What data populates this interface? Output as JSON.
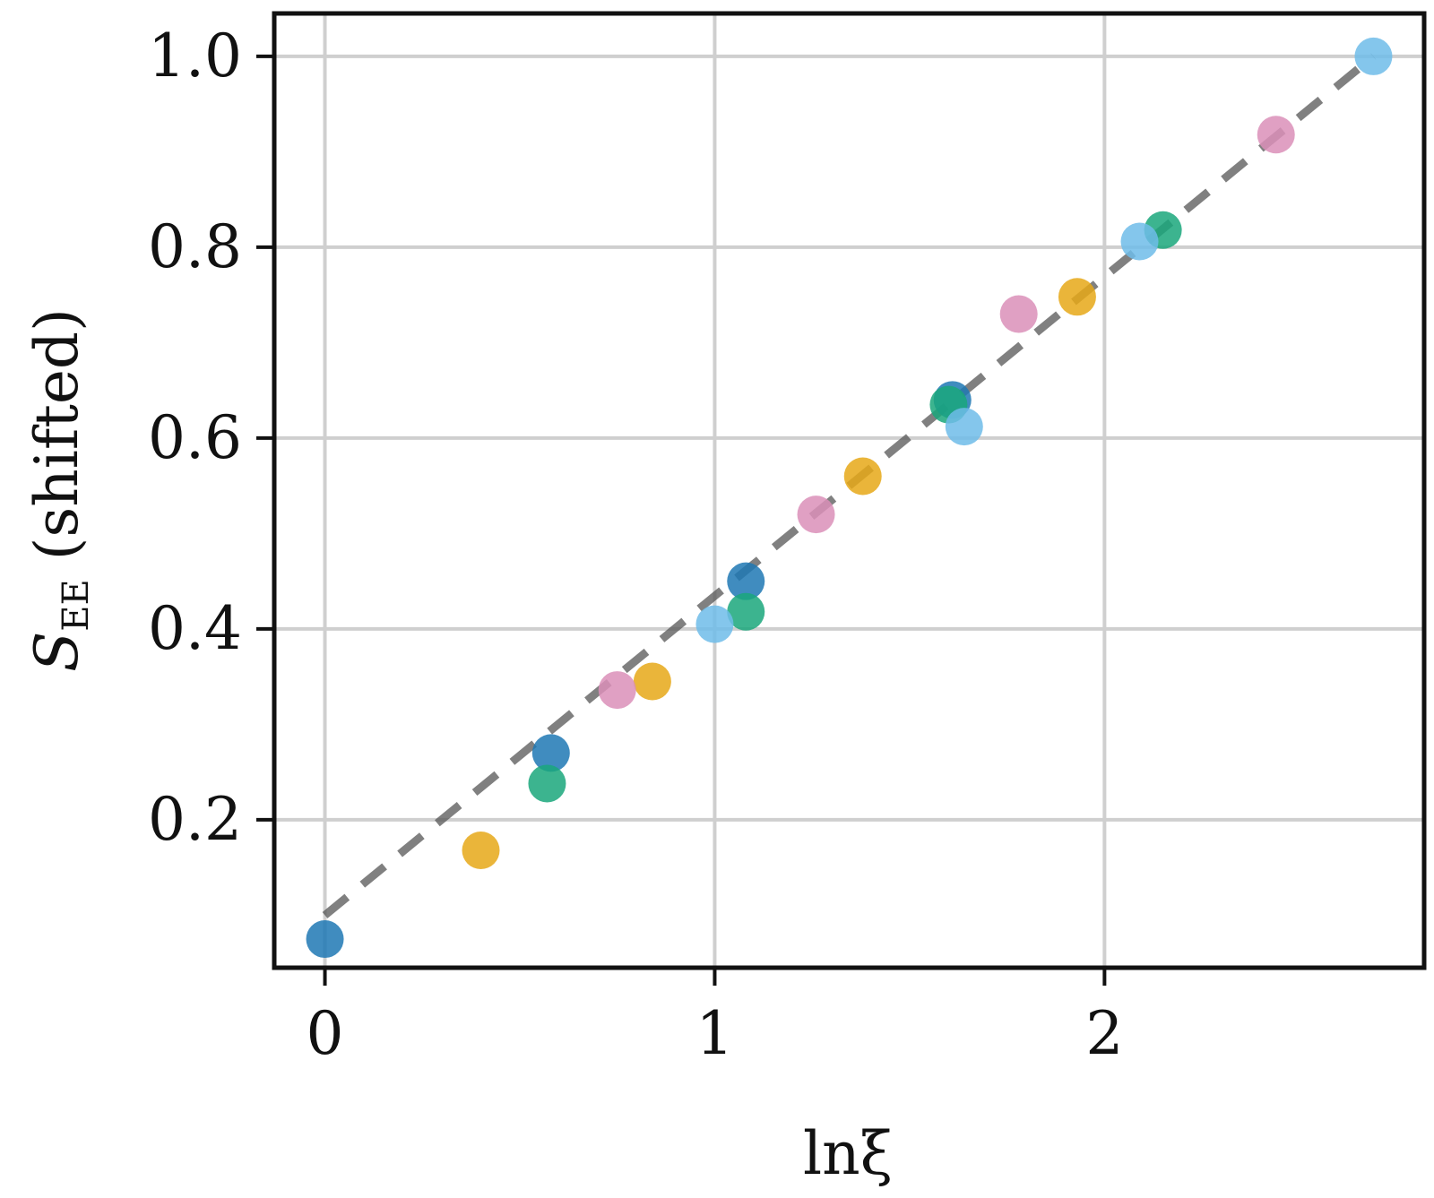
{
  "chart_data": {
    "type": "scatter",
    "title": "",
    "xlabel": "lnξ",
    "ylabel": "S",
    "ylabel_subscript": "EE",
    "ylabel_suffix": " (shifted)",
    "xlim": [
      -0.13,
      2.82
    ],
    "ylim": [
      0.045,
      1.045
    ],
    "xticks": [
      0,
      1,
      2
    ],
    "xtick_labels": [
      "0",
      "1",
      "2"
    ],
    "yticks": [
      0.2,
      0.4,
      0.6,
      0.8,
      1.0
    ],
    "ytick_labels": [
      "0.2",
      "0.4",
      "0.6",
      "0.8",
      "1.0"
    ],
    "grid": true,
    "legend": "none",
    "fit_line": {
      "style": "dashed",
      "color": "#555555",
      "x": [
        0,
        2.69
      ],
      "y": [
        0.1,
        1.0
      ]
    },
    "series": [
      {
        "color": "#1f78b4",
        "x": [
          0.0,
          0.58,
          1.08,
          1.61
        ],
        "y": [
          0.075,
          0.27,
          0.45,
          0.64
        ]
      },
      {
        "color": "#e6a817",
        "x": [
          0.4,
          0.84,
          1.38,
          1.93
        ],
        "y": [
          0.168,
          0.345,
          0.56,
          0.748
        ]
      },
      {
        "color": "#1aa77b",
        "x": [
          0.57,
          1.08,
          1.6,
          2.15
        ],
        "y": [
          0.238,
          0.418,
          0.635,
          0.818
        ]
      },
      {
        "color": "#da8fb8",
        "x": [
          0.75,
          1.26,
          1.78,
          2.44
        ],
        "y": [
          0.336,
          0.52,
          0.73,
          0.918
        ]
      },
      {
        "color": "#6fbce9",
        "x": [
          1.0,
          1.64,
          2.09,
          2.69
        ],
        "y": [
          0.405,
          0.612,
          0.806,
          1.0
        ]
      }
    ]
  }
}
